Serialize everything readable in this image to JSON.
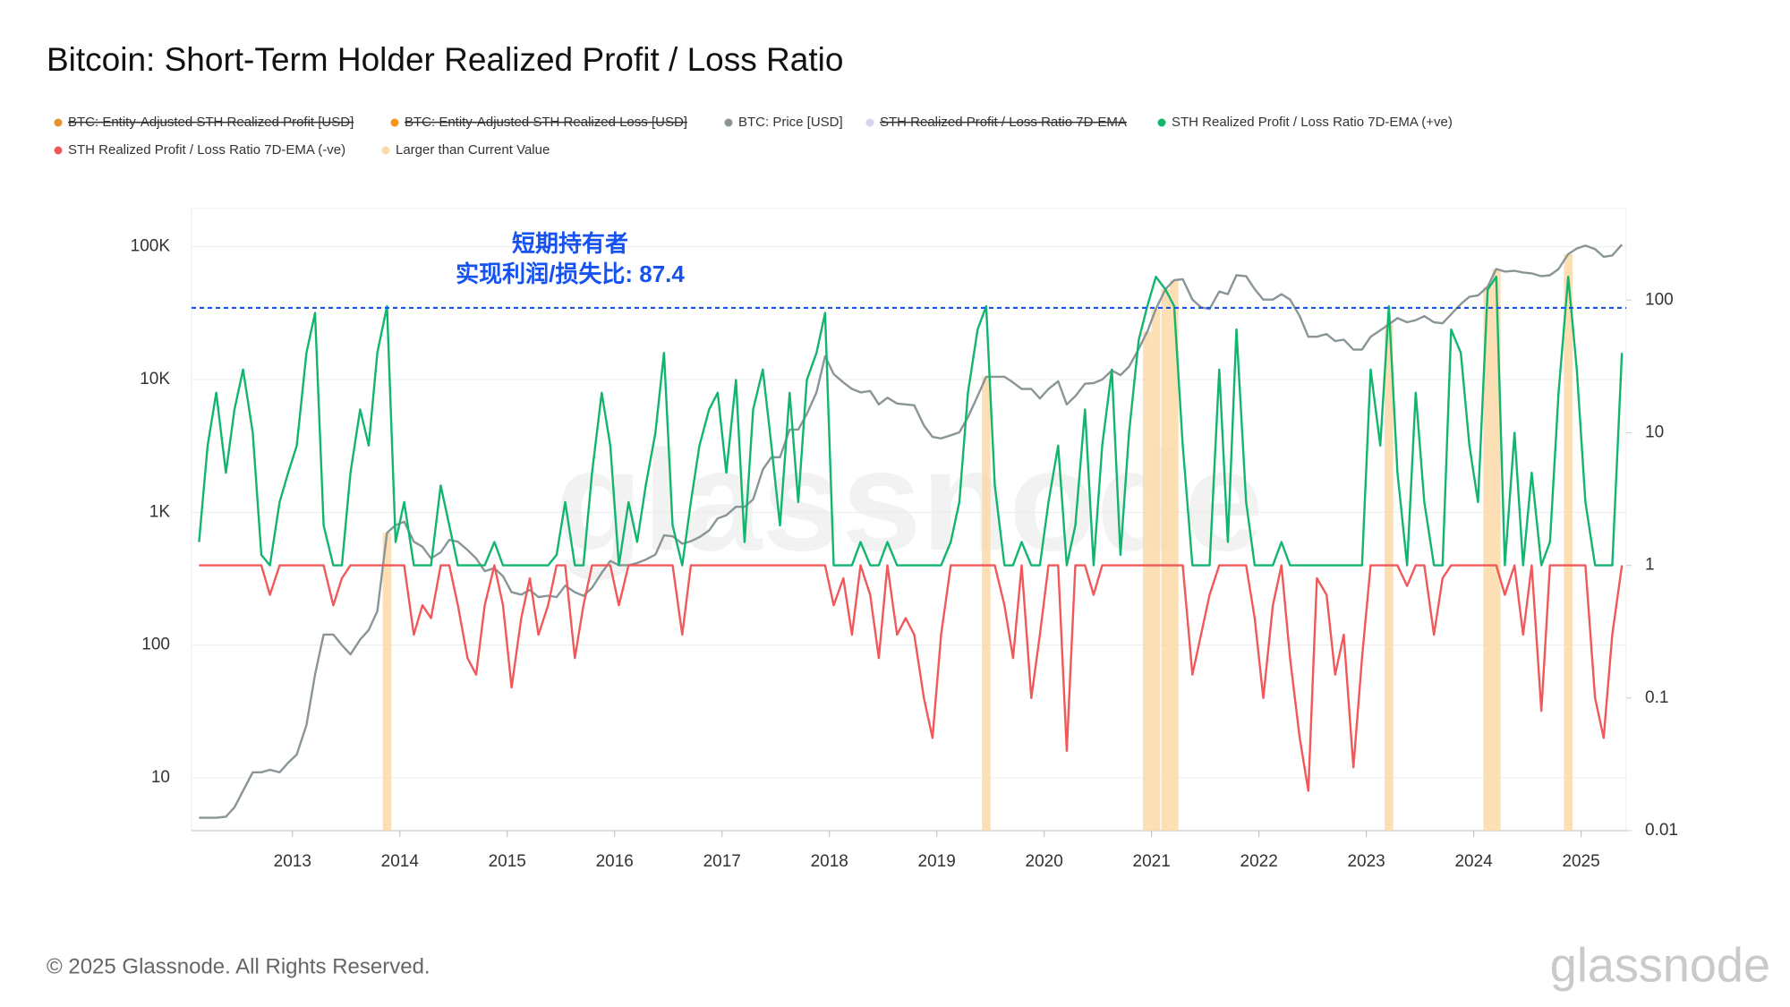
{
  "chart_data": {
    "type": "line",
    "title": "Bitcoin: Short-Term Holder Realized Profit / Loss Ratio",
    "footer": "© 2025 Glassnode. All Rights Reserved.",
    "watermark": "glassnode",
    "log_scale": true,
    "grid": true,
    "x": [
      2012.13,
      2012.21,
      2012.29,
      2012.38,
      2012.46,
      2012.54,
      2012.63,
      2012.71,
      2012.79,
      2012.88,
      2012.96,
      2013.04,
      2013.13,
      2013.21,
      2013.29,
      2013.38,
      2013.46,
      2013.54,
      2013.63,
      2013.71,
      2013.79,
      2013.88,
      2013.96,
      2014.04,
      2014.13,
      2014.21,
      2014.29,
      2014.38,
      2014.46,
      2014.54,
      2014.63,
      2014.71,
      2014.79,
      2014.88,
      2014.96,
      2015.04,
      2015.13,
      2015.21,
      2015.29,
      2015.38,
      2015.46,
      2015.54,
      2015.63,
      2015.71,
      2015.79,
      2015.88,
      2015.96,
      2016.04,
      2016.13,
      2016.21,
      2016.29,
      2016.38,
      2016.46,
      2016.54,
      2016.63,
      2016.71,
      2016.79,
      2016.88,
      2016.96,
      2017.04,
      2017.13,
      2017.21,
      2017.29,
      2017.38,
      2017.46,
      2017.54,
      2017.63,
      2017.71,
      2017.79,
      2017.88,
      2017.96,
      2018.04,
      2018.13,
      2018.21,
      2018.29,
      2018.38,
      2018.46,
      2018.54,
      2018.63,
      2018.71,
      2018.79,
      2018.88,
      2018.96,
      2019.04,
      2019.13,
      2019.21,
      2019.29,
      2019.38,
      2019.46,
      2019.54,
      2019.63,
      2019.71,
      2019.79,
      2019.88,
      2019.96,
      2020.04,
      2020.13,
      2020.21,
      2020.29,
      2020.38,
      2020.46,
      2020.54,
      2020.63,
      2020.71,
      2020.79,
      2020.88,
      2020.96,
      2021.04,
      2021.13,
      2021.21,
      2021.29,
      2021.38,
      2021.46,
      2021.54,
      2021.63,
      2021.71,
      2021.79,
      2021.88,
      2021.96,
      2022.04,
      2022.13,
      2022.21,
      2022.29,
      2022.38,
      2022.46,
      2022.54,
      2022.63,
      2022.71,
      2022.79,
      2022.88,
      2022.96,
      2023.04,
      2023.13,
      2023.21,
      2023.29,
      2023.38,
      2023.46,
      2023.54,
      2023.63,
      2023.71,
      2023.79,
      2023.88,
      2023.96,
      2024.04,
      2024.13,
      2024.21,
      2024.29,
      2024.38,
      2024.46,
      2024.54,
      2024.63,
      2024.71,
      2024.79,
      2024.88,
      2024.96,
      2025.04,
      2025.13,
      2025.21,
      2025.29,
      2025.38
    ],
    "xlim": [
      2012.06,
      2025.42
    ],
    "xticks": [
      2013,
      2014,
      2015,
      2016,
      2017,
      2018,
      2019,
      2020,
      2021,
      2022,
      2023,
      2024,
      2025
    ],
    "ylim": [
      4,
      194000
    ],
    "yticks": [
      10,
      100,
      {
        "value": 1000,
        "label": "1K"
      },
      {
        "value": 10000,
        "label": "10K"
      },
      {
        "value": 100000,
        "label": "100K"
      }
    ],
    "y2lim": [
      0.01,
      490
    ],
    "y2ticks": [
      0.01,
      0.1,
      1,
      10,
      100
    ],
    "annotation": {
      "lines": [
        "短期持有者",
        "实现利润/损失比: 87.4"
      ],
      "value": 87.4,
      "color": "#1652f0"
    },
    "series": [
      {
        "name": "BTC: Entity-Adjusted STH Realized Profit [USD]",
        "color": "#e8912d",
        "hidden": true
      },
      {
        "name": "BTC: Entity-Adjusted STH Realized Loss [USD]",
        "color": "#f7931a",
        "hidden": true
      },
      {
        "name": "BTC: Price [USD]",
        "color": "#8a9597",
        "values": [
          5,
          5,
          5,
          5.1,
          6,
          8,
          11,
          11,
          11.5,
          11,
          13,
          15,
          25,
          60,
          120,
          120,
          100,
          85,
          110,
          130,
          180,
          700,
          800,
          850,
          600,
          550,
          450,
          500,
          620,
          600,
          520,
          450,
          360,
          380,
          330,
          250,
          240,
          260,
          230,
          235,
          230,
          280,
          250,
          235,
          270,
          350,
          430,
          400,
          400,
          415,
          440,
          480,
          670,
          660,
          580,
          605,
          650,
          730,
          900,
          950,
          1100,
          1100,
          1250,
          2100,
          2600,
          2600,
          4200,
          4200,
          5500,
          8000,
          15000,
          11000,
          9500,
          8500,
          8000,
          8200,
          6500,
          7300,
          6600,
          6500,
          6400,
          4500,
          3700,
          3600,
          3800,
          4000,
          5200,
          7500,
          10500,
          10500,
          10500,
          9500,
          8500,
          8500,
          7200,
          8500,
          9700,
          6500,
          7500,
          9300,
          9400,
          10000,
          11700,
          10800,
          12500,
          17000,
          23000,
          34000,
          48000,
          56000,
          57000,
          40000,
          35000,
          34000,
          46000,
          44000,
          61000,
          60000,
          48000,
          40000,
          40000,
          44000,
          40000,
          30000,
          21000,
          21000,
          22000,
          19500,
          20000,
          16800,
          16800,
          21000,
          23500,
          26000,
          29000,
          27000,
          28000,
          30000,
          27000,
          26500,
          31000,
          37000,
          42000,
          43000,
          50000,
          68000,
          65000,
          66000,
          64000,
          63000,
          60000,
          61000,
          68000,
          88000,
          97000,
          102000,
          96000,
          84000,
          86000,
          104000
        ]
      },
      {
        "name": "STH Realized Profit / Loss Ratio 7D-EMA",
        "color": "#d9d2f0",
        "hidden": true
      },
      {
        "name": "STH Realized Profit / Loss Ratio 7D-EMA (+ve)",
        "color": "#12b56d",
        "axis": "y2",
        "values": [
          1.5,
          8,
          20,
          5,
          15,
          30,
          10,
          1.2,
          1,
          3,
          5,
          8,
          40,
          80,
          2,
          1,
          1,
          5,
          15,
          8,
          40,
          90,
          1.5,
          3,
          1,
          1,
          1,
          4,
          2,
          1,
          1,
          1,
          1,
          1.5,
          1,
          1,
          1,
          1,
          1,
          1,
          1.2,
          3,
          1,
          1,
          5,
          20,
          8,
          1,
          3,
          1.5,
          4,
          10,
          40,
          2,
          1,
          3,
          8,
          15,
          20,
          5,
          25,
          1.5,
          15,
          30,
          8,
          2,
          20,
          3,
          25,
          40,
          80,
          1,
          1,
          1,
          1.5,
          1,
          1,
          1.5,
          1,
          1,
          1,
          1,
          1,
          1,
          1.5,
          3,
          20,
          60,
          90,
          4,
          1,
          1,
          1.5,
          1,
          1,
          3,
          8,
          1,
          2,
          15,
          1,
          8,
          30,
          1.2,
          10,
          50,
          90,
          150,
          120,
          90,
          8,
          1,
          1,
          1,
          30,
          1.5,
          60,
          3,
          1,
          1,
          1,
          1.5,
          1,
          1,
          1,
          1,
          1,
          1,
          1,
          1,
          1,
          30,
          8,
          90,
          5,
          1,
          20,
          3,
          1,
          1,
          60,
          40,
          8,
          3,
          120,
          150,
          1,
          10,
          1,
          5,
          1,
          1.5,
          20,
          150,
          30,
          3,
          1,
          1,
          1,
          40
        ]
      },
      {
        "name": "STH Realized Profit / Loss Ratio 7D-EMA (-ve)",
        "color": "#f0585a",
        "axis": "y2",
        "values": [
          1,
          1,
          1,
          1,
          1,
          1,
          1,
          1,
          0.6,
          1,
          1,
          1,
          1,
          1,
          1,
          0.5,
          0.8,
          1,
          1,
          1,
          1,
          1,
          1,
          1,
          0.3,
          0.5,
          0.4,
          1,
          1,
          0.5,
          0.2,
          0.15,
          0.5,
          1,
          0.5,
          0.12,
          0.4,
          0.8,
          0.3,
          0.5,
          1,
          1,
          0.2,
          0.5,
          1,
          1,
          1,
          0.5,
          1,
          1,
          1,
          1,
          1,
          1,
          0.3,
          1,
          1,
          1,
          1,
          1,
          1,
          1,
          1,
          1,
          1,
          1,
          1,
          1,
          1,
          1,
          1,
          0.5,
          0.8,
          0.3,
          1,
          0.6,
          0.2,
          1,
          0.3,
          0.4,
          0.3,
          0.1,
          0.05,
          0.3,
          1,
          1,
          1,
          1,
          1,
          1,
          0.5,
          0.2,
          1,
          0.1,
          0.3,
          1,
          1,
          0.04,
          1,
          1,
          0.6,
          1,
          1,
          1,
          1,
          1,
          1,
          1,
          1,
          1,
          1,
          0.15,
          0.3,
          0.6,
          1,
          1,
          1,
          1,
          0.4,
          0.1,
          0.5,
          1,
          0.2,
          0.05,
          0.02,
          0.8,
          0.6,
          0.15,
          0.3,
          0.03,
          0.2,
          1,
          1,
          1,
          1,
          0.7,
          1,
          1,
          0.3,
          0.8,
          1,
          1,
          1,
          1,
          1,
          1,
          0.6,
          1,
          0.3,
          1,
          0.08,
          1,
          1,
          1,
          1,
          1,
          0.1,
          0.05,
          0.3,
          1
        ]
      },
      {
        "name": "Larger than Current Value",
        "color": "#fcd9a8"
      }
    ]
  }
}
